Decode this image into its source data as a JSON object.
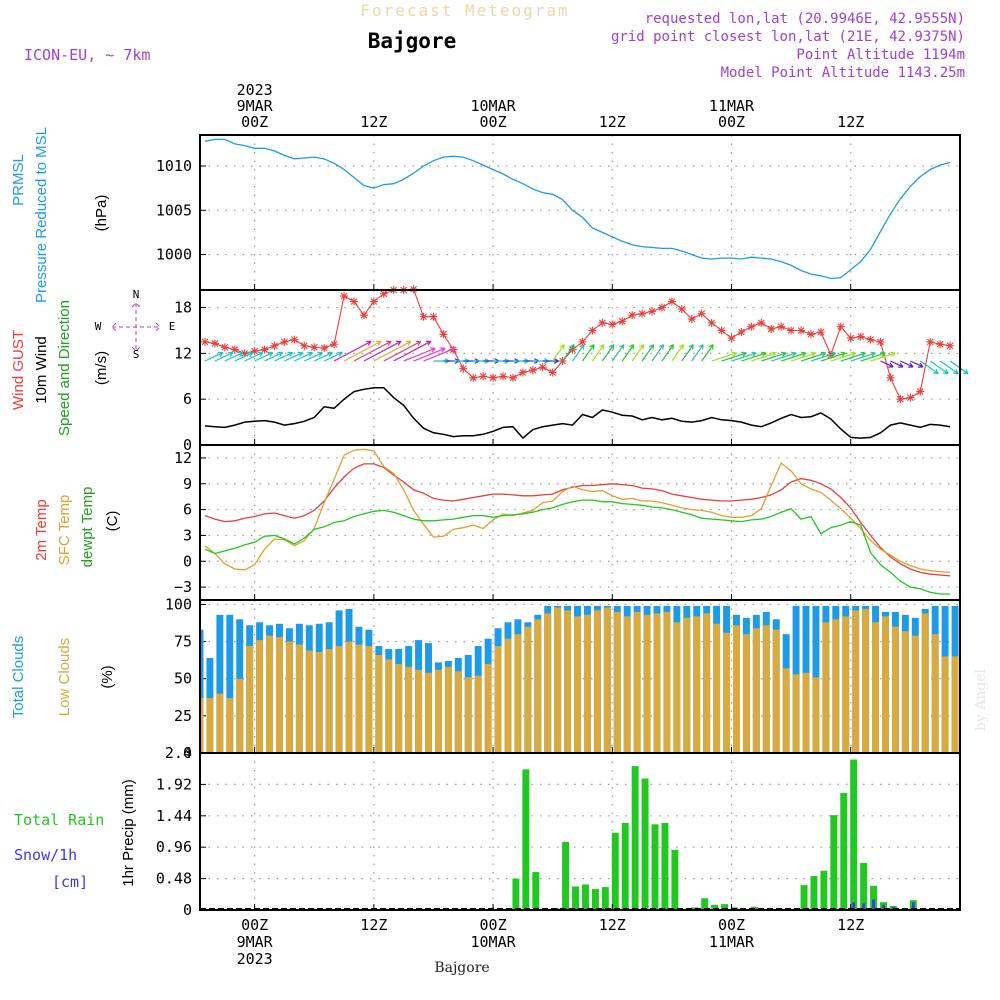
{
  "header": {
    "title": "Forecast Meteogram",
    "location": "Bajgore",
    "model": "ICON-EU, ~ 7km",
    "requested": "requested lon,lat (20.9946E, 42.9555N)",
    "grid_point": "grid point closest lon,lat (21E, 42.9375N)",
    "point_alt": "Point Altitude 1194m",
    "model_alt": "Model Point Altitude 1143.25m",
    "footer_location": "Bajgore",
    "credit": "by Angel"
  },
  "colors": {
    "pressure": "#1e9be6",
    "gust": "#e8403a",
    "wind": "#000000",
    "t2m": "#e8403a",
    "tsfc": "#e0a030",
    "dew": "#22c822",
    "total_clouds": "#1e9be6",
    "low_clouds": "#d8aa40",
    "rain": "#22c822",
    "snow": "#3a3ae8",
    "header": "#a040d0"
  },
  "time_axis": {
    "top_labels": [
      {
        "h": 0,
        "lines": [
          "2023",
          "9MAR",
          "00Z"
        ]
      },
      {
        "h": 12,
        "lines": [
          "12Z"
        ]
      },
      {
        "h": 24,
        "lines": [
          "10MAR",
          "00Z"
        ]
      },
      {
        "h": 36,
        "lines": [
          "12Z"
        ]
      },
      {
        "h": 48,
        "lines": [
          "11MAR",
          "00Z"
        ]
      },
      {
        "h": 60,
        "lines": [
          "12Z"
        ]
      }
    ],
    "bottom_labels": [
      {
        "h": 0,
        "lines": [
          "00Z",
          "9MAR",
          "2023"
        ]
      },
      {
        "h": 12,
        "lines": [
          "12Z"
        ]
      },
      {
        "h": 24,
        "lines": [
          "00Z",
          "10MAR"
        ]
      },
      {
        "h": 36,
        "lines": [
          "12Z"
        ]
      },
      {
        "h": 48,
        "lines": [
          "00Z",
          "11MAR"
        ]
      },
      {
        "h": 60,
        "lines": [
          "12Z"
        ]
      }
    ],
    "x_range_hours": [
      -5.5,
      71
    ]
  },
  "chart_data": [
    {
      "type": "line",
      "id": "pressure",
      "labels": [
        "PRMSL",
        "Pressure Reduced to MSL",
        "(hPa)"
      ],
      "ylim": [
        996,
        1013.5
      ],
      "yticks": [
        "1000",
        "1005",
        "1010"
      ],
      "x": [
        -5,
        -4,
        -3,
        -2,
        -1,
        0,
        1,
        2,
        3,
        4,
        5,
        6,
        7,
        8,
        9,
        10,
        11,
        12,
        13,
        14,
        15,
        16,
        17,
        18,
        19,
        20,
        21,
        22,
        23,
        24,
        25,
        26,
        27,
        28,
        29,
        30,
        31,
        32,
        33,
        34,
        35,
        36,
        37,
        38,
        39,
        40,
        41,
        42,
        43,
        44,
        45,
        46,
        47,
        48,
        49,
        50,
        51,
        52,
        53,
        54,
        55,
        56,
        57,
        58,
        59,
        60,
        61,
        62,
        63,
        64,
        65,
        66,
        67,
        68,
        69,
        70
      ],
      "values": [
        1012.8,
        1013.0,
        1013.0,
        1012.5,
        1012.3,
        1012.0,
        1012.0,
        1011.7,
        1011.2,
        1010.8,
        1010.9,
        1011.0,
        1010.8,
        1010.3,
        1009.6,
        1008.7,
        1007.8,
        1007.5,
        1007.9,
        1008.0,
        1008.5,
        1009.2,
        1010.0,
        1010.6,
        1011.0,
        1011.1,
        1011.0,
        1010.6,
        1010.1,
        1009.6,
        1009.1,
        1008.5,
        1008.0,
        1007.4,
        1007.0,
        1006.8,
        1006.2,
        1005.0,
        1004.2,
        1003.0,
        1002.5,
        1002.0,
        1001.5,
        1001.1,
        1000.9,
        1000.8,
        1000.7,
        1000.7,
        1000.4,
        1000.0,
        999.6,
        999.5,
        999.6,
        999.6,
        999.5,
        999.7,
        999.6,
        999.5,
        999.2,
        998.8,
        998.2,
        997.8,
        997.6,
        997.3,
        997.4,
        998.3,
        999.2,
        1000.6,
        1002.6,
        1004.6,
        1006.3,
        1007.7,
        1008.8,
        1009.6,
        1010.1,
        1010.4
      ]
    },
    {
      "type": "line",
      "id": "wind",
      "labels": [
        "Wind GUST",
        "10m Wind",
        "Speed and Direction",
        "(m/s)"
      ],
      "compass": [
        "N",
        "W",
        "E",
        "S"
      ],
      "ylim": [
        0,
        20.3
      ],
      "yticks": [
        "0",
        "6",
        "12",
        "18"
      ],
      "x": [
        -5,
        -4,
        -3,
        -2,
        -1,
        0,
        1,
        2,
        3,
        4,
        5,
        6,
        7,
        8,
        9,
        10,
        11,
        12,
        13,
        14,
        15,
        16,
        17,
        18,
        19,
        20,
        21,
        22,
        23,
        24,
        25,
        26,
        27,
        28,
        29,
        30,
        31,
        32,
        33,
        34,
        35,
        36,
        37,
        38,
        39,
        40,
        41,
        42,
        43,
        44,
        45,
        46,
        47,
        48,
        49,
        50,
        51,
        52,
        53,
        54,
        55,
        56,
        57,
        58,
        59,
        60,
        61,
        62,
        63,
        64,
        65,
        66,
        67,
        68,
        69,
        70
      ],
      "gust": [
        13.5,
        13.3,
        12.8,
        12.5,
        12.0,
        12.3,
        12.5,
        13.0,
        13.5,
        13.8,
        13.0,
        12.8,
        12.7,
        13.2,
        19.5,
        18.8,
        17.0,
        18.8,
        19.8,
        20.3,
        20.3,
        20.4,
        16.8,
        16.8,
        14.5,
        12.5,
        10.0,
        8.8,
        9.0,
        8.8,
        9.0,
        8.8,
        9.5,
        9.8,
        10.2,
        9.5,
        11.0,
        12.5,
        13.5,
        15.0,
        16.0,
        15.8,
        16.2,
        17.0,
        17.2,
        17.5,
        18.0,
        18.8,
        17.8,
        16.5,
        17.2,
        16.0,
        15.0,
        14.0,
        14.8,
        15.5,
        16.0,
        15.2,
        15.5,
        15.0,
        15.0,
        14.5,
        14.8,
        11.8,
        15.5,
        14.0,
        14.2,
        13.8,
        13.5,
        8.8,
        6.0,
        6.2,
        7.0,
        13.5,
        13.2,
        13.0
      ],
      "speed": [
        2.5,
        2.4,
        2.3,
        2.6,
        3.0,
        3.1,
        3.2,
        3.0,
        2.6,
        2.8,
        3.1,
        3.6,
        5.0,
        4.8,
        6.0,
        7.0,
        7.3,
        7.5,
        7.5,
        6.2,
        5.2,
        3.5,
        2.2,
        1.6,
        1.4,
        1.1,
        1.2,
        1.2,
        1.4,
        1.8,
        2.3,
        2.4,
        0.9,
        2.0,
        2.4,
        2.6,
        2.8,
        2.6,
        4.0,
        3.6,
        4.6,
        4.3,
        3.9,
        3.8,
        3.3,
        3.6,
        3.3,
        3.5,
        3.1,
        3.0,
        3.2,
        3.6,
        3.3,
        3.2,
        3.0,
        2.6,
        2.4,
        2.9,
        3.5,
        4.0,
        3.6,
        3.7,
        4.2,
        3.4,
        2.1,
        1.0,
        0.9,
        1.0,
        1.6,
        2.6,
        2.9,
        2.6,
        2.3,
        2.7,
        2.6,
        2.4
      ]
    },
    {
      "type": "line",
      "id": "temperature",
      "labels": [
        "2m Temp",
        "SFC Temp",
        "dewpt Temp",
        "(C)"
      ],
      "ylim": [
        -4.5,
        13.5
      ],
      "yticks": [
        "−3",
        "0",
        "3",
        "6",
        "9",
        "12"
      ],
      "x": [
        -5,
        -4,
        -3,
        -2,
        -1,
        0,
        1,
        2,
        3,
        4,
        5,
        6,
        7,
        8,
        9,
        10,
        11,
        12,
        13,
        14,
        15,
        16,
        17,
        18,
        19,
        20,
        21,
        22,
        23,
        24,
        25,
        26,
        27,
        28,
        29,
        30,
        31,
        32,
        33,
        34,
        35,
        36,
        37,
        38,
        39,
        40,
        41,
        42,
        43,
        44,
        45,
        46,
        47,
        48,
        49,
        50,
        51,
        52,
        53,
        54,
        55,
        56,
        57,
        58,
        59,
        60,
        61,
        62,
        63,
        64,
        65,
        66,
        67,
        68,
        69,
        70
      ],
      "series": [
        {
          "name": "2m Temp",
          "values": [
            5.3,
            4.9,
            4.6,
            4.7,
            5.0,
            5.2,
            5.5,
            5.6,
            5.3,
            5.0,
            5.3,
            5.9,
            7.0,
            8.5,
            9.8,
            10.8,
            11.3,
            11.3,
            10.9,
            10.0,
            9.2,
            8.3,
            7.9,
            7.3,
            7.1,
            7.0,
            7.2,
            7.4,
            7.6,
            7.8,
            7.8,
            7.7,
            7.6,
            7.6,
            7.7,
            7.8,
            8.3,
            8.6,
            8.8,
            8.8,
            8.9,
            9.0,
            8.9,
            8.8,
            8.5,
            8.4,
            8.2,
            7.8,
            7.6,
            7.4,
            7.2,
            7.1,
            7.0,
            7.0,
            7.1,
            7.2,
            7.4,
            7.7,
            8.3,
            9.2,
            9.6,
            9.4,
            9.0,
            8.4,
            7.4,
            6.2,
            4.5,
            3.0,
            1.6,
            0.5,
            -0.3,
            -0.9,
            -1.3,
            -1.5,
            -1.6,
            -1.7
          ]
        },
        {
          "name": "SFC Temp",
          "values": [
            1.8,
            0.9,
            -0.3,
            -0.9,
            -1.0,
            -0.4,
            1.4,
            2.6,
            2.5,
            1.8,
            2.4,
            3.8,
            6.8,
            9.5,
            12.3,
            12.9,
            13.0,
            12.8,
            11.0,
            10.2,
            8.3,
            5.9,
            4.3,
            2.8,
            2.9,
            3.7,
            3.9,
            4.2,
            3.8,
            4.8,
            5.5,
            5.3,
            5.6,
            5.9,
            6.8,
            7.0,
            8.1,
            8.7,
            8.3,
            8.1,
            8.2,
            7.6,
            7.2,
            7.3,
            7.0,
            7.0,
            6.8,
            6.5,
            6.2,
            6.0,
            5.9,
            5.7,
            5.3,
            5.1,
            5.1,
            5.3,
            6.1,
            8.8,
            11.4,
            10.5,
            9.0,
            8.4,
            8.0,
            7.1,
            6.1,
            5.0,
            3.8,
            2.4,
            1.4,
            0.7,
            0.0,
            -0.5,
            -0.9,
            -1.1,
            -1.2,
            -1.3
          ]
        },
        {
          "name": "dewpt Temp",
          "values": [
            1.4,
            0.9,
            1.2,
            1.5,
            1.9,
            2.2,
            2.9,
            3.0,
            2.6,
            2.0,
            2.7,
            3.7,
            4.0,
            4.5,
            4.7,
            5.2,
            5.5,
            5.8,
            5.9,
            5.7,
            5.3,
            4.9,
            4.7,
            4.7,
            4.8,
            4.9,
            5.1,
            5.3,
            5.3,
            5.1,
            5.3,
            5.4,
            5.5,
            5.7,
            6.0,
            6.2,
            6.6,
            6.9,
            7.1,
            7.1,
            6.9,
            6.9,
            6.7,
            6.6,
            6.5,
            6.3,
            6.2,
            6.0,
            5.7,
            5.4,
            5.0,
            4.9,
            4.8,
            4.7,
            4.6,
            4.8,
            4.9,
            5.2,
            5.7,
            6.1,
            4.9,
            5.2,
            3.2,
            3.9,
            4.2,
            4.6,
            4.2,
            1.0,
            -0.4,
            -1.3,
            -2.3,
            -3.0,
            -3.2,
            -3.6,
            -3.8,
            -3.8
          ]
        }
      ]
    },
    {
      "type": "bar",
      "id": "clouds",
      "labels": [
        "Total Clouds",
        "Low Clouds",
        "(%)"
      ],
      "ylim": [
        0,
        103
      ],
      "yticks": [
        "0",
        "25",
        "50",
        "75",
        "100"
      ],
      "x": [
        -5.5,
        -4.5,
        -3.5,
        -2.5,
        -1.5,
        -0.5,
        0.5,
        1.5,
        2.5,
        3.5,
        4.5,
        5.5,
        6.5,
        7.5,
        8.5,
        9.5,
        10.5,
        11.5,
        12.5,
        13.5,
        14.5,
        15.5,
        16.5,
        17.5,
        18.5,
        19.5,
        20.5,
        21.5,
        22.5,
        23.5,
        24.5,
        25.5,
        26.5,
        27.5,
        28.5,
        29.5,
        30.5,
        31.5,
        32.5,
        33.5,
        34.5,
        35.5,
        36.5,
        37.5,
        38.5,
        39.5,
        40.5,
        41.5,
        42.5,
        43.5,
        44.5,
        45.5,
        46.5,
        47.5,
        48.5,
        49.5,
        50.5,
        51.5,
        52.5,
        53.5,
        54.5,
        55.5,
        56.5,
        57.5,
        58.5,
        59.5,
        60.5,
        61.5,
        62.5,
        63.5,
        64.5,
        65.5,
        66.5,
        67.5,
        68.5,
        69.5,
        70.5
      ],
      "series": [
        {
          "name": "Total Clouds",
          "values": [
            83,
            64,
            93,
            93,
            90,
            86,
            88,
            86,
            87,
            84,
            87,
            86,
            87,
            88,
            96,
            97,
            85,
            83,
            72,
            70,
            70,
            72,
            76,
            74,
            61,
            62,
            64,
            66,
            72,
            77,
            84,
            88,
            90,
            88,
            93,
            99,
            99,
            99,
            99,
            99,
            99,
            99,
            99,
            99,
            99,
            99,
            99,
            99,
            99,
            99,
            99,
            99,
            99,
            99,
            93,
            91,
            93,
            95,
            90,
            80,
            99,
            99,
            99,
            99,
            99,
            99,
            99,
            99,
            99,
            95,
            95,
            93,
            91,
            97,
            99,
            99,
            99
          ]
        },
        {
          "name": "Low Clouds",
          "values": [
            37,
            37,
            40,
            37,
            50,
            72,
            76,
            79,
            78,
            75,
            73,
            69,
            68,
            70,
            72,
            75,
            73,
            72,
            66,
            63,
            60,
            58,
            56,
            54,
            56,
            58,
            55,
            51,
            52,
            60,
            72,
            77,
            80,
            85,
            90,
            94,
            98,
            96,
            92,
            93,
            96,
            98,
            95,
            92,
            95,
            93,
            94,
            95,
            88,
            91,
            92,
            94,
            87,
            81,
            86,
            80,
            84,
            86,
            83,
            57,
            53,
            54,
            51,
            88,
            90,
            92,
            96,
            97,
            88,
            92,
            85,
            82,
            79,
            94,
            80,
            65,
            65
          ]
        }
      ]
    },
    {
      "type": "bar",
      "id": "precip",
      "labels": [
        "Total Rain",
        "Snow/1h",
        "[cm]",
        "1hr Precip (mm)"
      ],
      "ylim": [
        0,
        2.4
      ],
      "yticks": [
        "0",
        "0.48",
        "0.96",
        "1.44",
        "1.92",
        "2.4"
      ],
      "x": [
        24.3,
        25.3,
        26.3,
        27.3,
        28.3,
        29.3,
        30.3,
        31.3,
        32.3,
        33.3,
        34.3,
        35.3,
        36.3,
        37.3,
        38.3,
        39.3,
        40.3,
        41.3,
        42.3,
        43.3,
        44.3,
        45.3,
        46.3,
        47.3,
        48.3,
        49.3,
        50.3,
        51.3,
        52.3,
        53.3,
        54.3,
        55.3,
        56.3,
        57.3,
        58.3,
        59.3,
        60.3,
        61.3,
        62.3,
        63.3,
        64.3,
        65.3,
        66.3,
        67.3,
        68.3,
        69.3,
        70.3
      ],
      "series": [
        {
          "name": "Total Rain",
          "values": [
            0,
            0,
            0.48,
            2.15,
            0.58,
            0,
            0.03,
            1.04,
            0.36,
            0.39,
            0.32,
            0.35,
            1.18,
            1.33,
            2.2,
            2.01,
            1.31,
            1.33,
            0.92,
            0,
            0.04,
            0.18,
            0.08,
            0.09,
            0.04,
            0,
            0.05,
            0,
            0,
            0,
            0,
            0.38,
            0.52,
            0.6,
            1.45,
            1.79,
            2.3,
            0.72,
            0.37,
            0.12,
            0.06,
            0.02,
            0.15,
            0,
            0,
            0,
            0
          ]
        },
        {
          "name": "Snow/1h",
          "values": [
            0,
            0,
            0,
            0,
            0,
            0,
            0,
            0,
            0,
            0,
            0,
            0,
            0,
            0,
            0,
            0,
            0,
            0,
            0,
            0,
            0,
            0,
            0,
            0,
            0,
            0,
            0,
            0,
            0,
            0,
            0,
            0,
            0,
            0,
            0,
            0,
            0.12,
            0.1,
            0.16,
            0.08,
            0.05,
            0.02,
            0.12,
            0,
            0,
            0,
            0
          ]
        }
      ]
    }
  ]
}
